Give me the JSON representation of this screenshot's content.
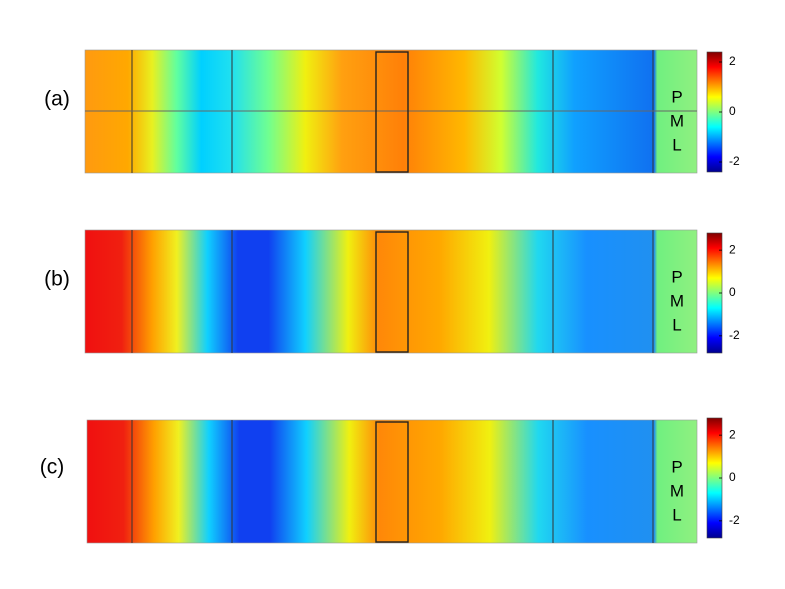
{
  "panels": [
    {
      "label": "(a)",
      "pml": [
        "P",
        "M",
        "L"
      ],
      "colorbar": {
        "lim": [
          -2.4,
          2.4
        ],
        "ticks": [
          2,
          0,
          -2
        ]
      }
    },
    {
      "label": "(b)",
      "pml": [
        "P",
        "M",
        "L"
      ],
      "colorbar": {
        "lim": [
          -2.8,
          2.8
        ],
        "ticks": [
          2,
          0,
          -2
        ]
      }
    },
    {
      "label": "(c)",
      "pml": [
        "P",
        "M",
        "L"
      ],
      "colorbar": {
        "lim": [
          -2.8,
          2.8
        ],
        "ticks": [
          2,
          0,
          -2
        ]
      }
    }
  ]
}
